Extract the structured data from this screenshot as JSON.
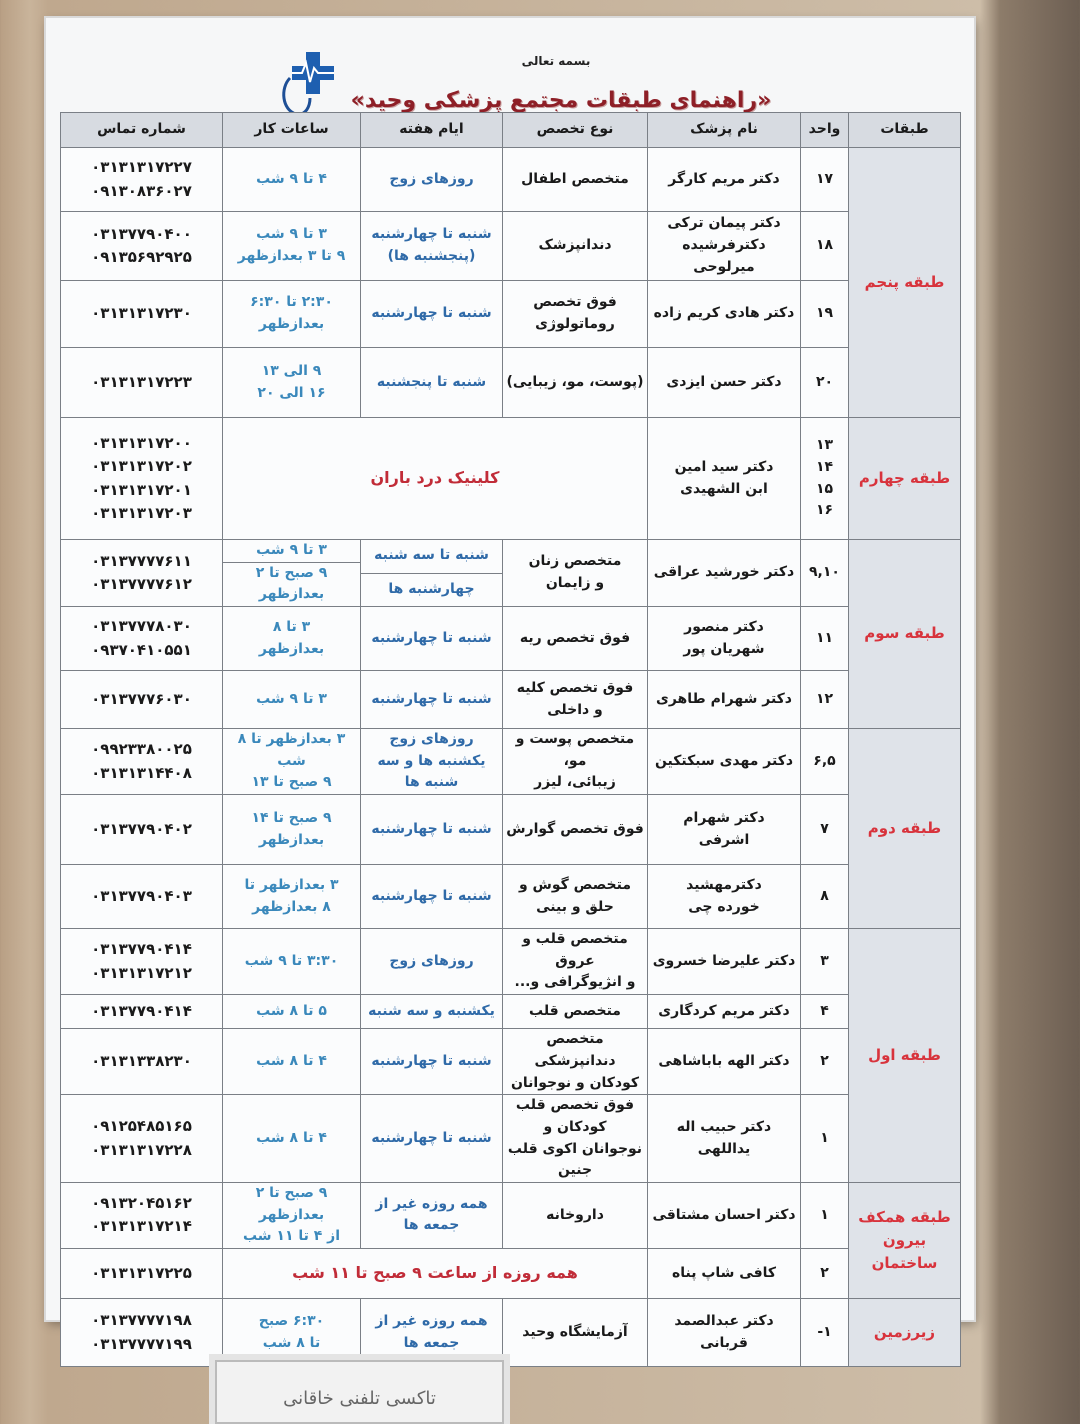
{
  "header": {
    "bismillah": "بسمه تعالی",
    "title": "«راهنمای طبقات مجتمع پزشکی وحید»"
  },
  "columns": [
    "طبقات",
    "واحد",
    "نام پزشک",
    "نوع تخصص",
    "ایام هفته",
    "ساعات کار",
    "شماره تماس"
  ],
  "floors": [
    {
      "label": [
        "طبقه پنجم"
      ],
      "rows": [
        {
          "unit": [
            "۱۷"
          ],
          "name": [
            "دکتر مریم کارگر"
          ],
          "specialty": [
            "متخصص اطفال"
          ],
          "days": [
            "روزهای زوج"
          ],
          "hours": [
            "۴ تا ۹ شب"
          ],
          "phones": [
            "۰۳۱۳۱۳۱۷۲۲۷",
            "۰۹۱۳۰۸۳۶۰۲۷"
          ]
        },
        {
          "unit": [
            "۱۸"
          ],
          "name": [
            "دکتر پیمان ترکی",
            "دکترفرشیده میرلوحی"
          ],
          "specialty": [
            "دندانپزشک"
          ],
          "days": [
            "شنبه تا چهارشنبه",
            "(پنجشنبه ها)"
          ],
          "hours": [
            "۳ تا ۹ شب",
            "۹ تا ۳ بعدازظهر"
          ],
          "phones": [
            "۰۳۱۳۷۷۹۰۴۰۰",
            "۰۹۱۳۵۶۹۲۹۲۵"
          ]
        },
        {
          "unit": [
            "۱۹"
          ],
          "name": [
            "دکتر هادی کریم زاده"
          ],
          "specialty": [
            "فوق تخصص",
            "روماتولوژی"
          ],
          "days": [
            "شنبه تا چهارشنبه"
          ],
          "hours": [
            "۲:۳۰ تا ۶:۳۰",
            "بعدازظهر"
          ],
          "phones": [
            "۰۳۱۳۱۳۱۷۲۳۰"
          ]
        },
        {
          "unit": [
            "۲۰"
          ],
          "name": [
            "دکتر حسن ایزدی"
          ],
          "specialty": [
            "(پوست، مو، زیبایی)"
          ],
          "days": [
            "شنبه تا پنجشنبه"
          ],
          "hours": [
            "۹ الی ۱۳",
            "۱۶ الی ۲۰"
          ],
          "phones": [
            "۰۳۱۳۱۳۱۷۲۲۳"
          ]
        }
      ]
    },
    {
      "label": [
        "طبقه چهارم"
      ],
      "rows": [
        {
          "unit": [
            "۱۳",
            "۱۴",
            "۱۵",
            "۱۶"
          ],
          "name": [
            "دکتر سید امین",
            "ابن الشهیدی"
          ],
          "span": "کلینیک درد باران",
          "phones": [
            "۰۳۱۳۱۳۱۷۲۰۰",
            "۰۳۱۳۱۳۱۷۲۰۲",
            "۰۳۱۳۱۳۱۷۲۰۱",
            "۰۳۱۳۱۳۱۷۲۰۳"
          ]
        }
      ]
    },
    {
      "label": [
        "طبقه سوم"
      ],
      "rows": [
        {
          "unit": [
            "۹,۱۰"
          ],
          "name": [
            "دکتر خورشید عراقی"
          ],
          "specialty": [
            "متخصص زنان",
            "و زایمان"
          ],
          "days": [
            "شنبه تا سه شنبه",
            "چهارشنبه ها"
          ],
          "hours": [
            "۳ تا ۹ شب",
            "۹ صبح تا ۲ بعدازظهر"
          ],
          "split": true,
          "phones": [
            "۰۳۱۳۷۷۷۷۶۱۱",
            "۰۳۱۳۷۷۷۷۶۱۲"
          ]
        },
        {
          "unit": [
            "۱۱"
          ],
          "name": [
            "دکتر منصور",
            "شهریان پور"
          ],
          "specialty": [
            "فوق تخصص ریه"
          ],
          "days": [
            "شنبه تا چهارشنبه"
          ],
          "hours": [
            "۳ تا ۸",
            "بعدازظهر"
          ],
          "phones": [
            "۰۳۱۳۷۷۷۸۰۳۰",
            "۰۹۳۷۰۴۱۰۵۵۱"
          ]
        },
        {
          "unit": [
            "۱۲"
          ],
          "name": [
            "دکتر شهرام طاهری"
          ],
          "specialty": [
            "فوق تخصص کلیه",
            "و داخلی"
          ],
          "days": [
            "شنبه تا چهارشنبه"
          ],
          "hours": [
            "۳ تا ۹ شب"
          ],
          "phones": [
            "۰۳۱۳۷۷۷۶۰۳۰"
          ]
        }
      ]
    },
    {
      "label": [
        "طبقه دوم"
      ],
      "rows": [
        {
          "unit": [
            "۶,۵"
          ],
          "name": [
            "دکتر مهدی سبکتکین"
          ],
          "specialty": [
            "متخصص پوست و مو،",
            "زیبائی، لیزر"
          ],
          "days": [
            "روزهای زوج",
            "یکشنبه ها و سه شنبه ها"
          ],
          "hours": [
            "۳ بعدازظهر تا ۸ شب",
            "۹ صبح تا ۱۳"
          ],
          "phones": [
            "۰۹۹۲۳۳۸۰۰۲۵",
            "۰۳۱۳۱۳۱۴۴۰۸"
          ]
        },
        {
          "unit": [
            "۷"
          ],
          "name": [
            "دکتر شهرام",
            "اشرفی"
          ],
          "specialty": [
            "فوق تخصص گوارش"
          ],
          "days": [
            "شنبه تا چهارشنبه"
          ],
          "hours": [
            "۹ صبح تا ۱۴",
            "بعدازظهر"
          ],
          "phones": [
            "۰۳۱۳۷۷۹۰۴۰۲"
          ]
        },
        {
          "unit": [
            "۸"
          ],
          "name": [
            "دکترمهشید",
            "خورده چی"
          ],
          "specialty": [
            "متخصص گوش و",
            "حلق و بینی"
          ],
          "days": [
            "شنبه تا چهارشنبه"
          ],
          "hours": [
            "۳ بعدازظهر تا",
            "۸ بعدازظهر"
          ],
          "phones": [
            "۰۳۱۳۷۷۹۰۴۰۳"
          ]
        }
      ]
    },
    {
      "label": [
        "طبقه اول"
      ],
      "rows": [
        {
          "unit": [
            "۳"
          ],
          "name": [
            "دکتر علیرضا خسروی"
          ],
          "specialty": [
            "متخصص قلب و عروق",
            "و انژیوگرافی و..."
          ],
          "days": [
            "روزهای زوج"
          ],
          "hours": [
            "۳:۳۰ تا ۹ شب"
          ],
          "phones": [
            "۰۳۱۳۷۷۹۰۴۱۴",
            "۰۳۱۳۱۳۱۷۲۱۲"
          ]
        },
        {
          "unit": [
            "۴"
          ],
          "name": [
            "دکتر مریم کردگاری"
          ],
          "specialty": [
            "متخصص قلب"
          ],
          "days": [
            "یکشنبه و سه شنبه"
          ],
          "hours": [
            "۵ تا ۸ شب"
          ],
          "phones": [
            "۰۳۱۳۷۷۹۰۴۱۴"
          ]
        },
        {
          "unit": [
            "۲"
          ],
          "name": [
            "دکتر الهه باباشاهی"
          ],
          "specialty": [
            "متخصص دندانپزشکی",
            "کودکان و نوجوانان"
          ],
          "days": [
            "شنبه تا چهارشنبه"
          ],
          "hours": [
            "۴ تا ۸ شب"
          ],
          "phones": [
            "۰۳۱۳۱۳۳۸۲۳۰"
          ]
        },
        {
          "unit": [
            "۱"
          ],
          "name": [
            "دکتر حبیب اله یداللهی"
          ],
          "specialty": [
            "فوق تخصص قلب کودکان و",
            "نوجوانان اکوی قلب جنین"
          ],
          "days": [
            "شنبه تا چهارشنبه"
          ],
          "hours": [
            "۴ تا ۸ شب"
          ],
          "phones": [
            "۰۹۱۲۵۴۸۵۱۶۵",
            "۰۳۱۳۱۳۱۷۲۲۸"
          ]
        }
      ]
    },
    {
      "label": [
        "طبقه همکف",
        "بیرون",
        "ساختمان"
      ],
      "rows": [
        {
          "unit": [
            "۱"
          ],
          "name": [
            "دکتر احسان مشتاقی"
          ],
          "specialty": [
            "داروخانه"
          ],
          "days": [
            "همه روزه غیر از",
            "جمعه ها"
          ],
          "hours": [
            "۹ صبح تا ۲ بعدازظهر",
            "از ۴ تا ۱۱ شب"
          ],
          "phones": [
            "۰۹۱۳۲۰۴۵۱۶۲",
            "۰۳۱۳۱۳۱۷۲۱۴"
          ]
        },
        {
          "unit": [
            "۲"
          ],
          "name": [
            "کافی شاپ پناه"
          ],
          "span": "همه روزه از ساعت ۹ صبح تا ۱۱ شب",
          "phones": [
            "۰۳۱۳۱۳۱۷۲۲۵"
          ]
        }
      ]
    },
    {
      "label": [
        "زیرزمین"
      ],
      "rows": [
        {
          "unit": [
            "۱-"
          ],
          "name": [
            "دکتر عبدالصمد",
            "قربانی"
          ],
          "specialty": [
            "آزمایشگاه وحید"
          ],
          "days": [
            "همه روزه غیر از",
            "جمعه ها"
          ],
          "hours": [
            "۶:۳۰ صبح",
            "تا ۸ شب"
          ],
          "phones": [
            "۰۳۱۳۷۷۷۷۱۹۸",
            "۰۳۱۳۷۷۷۷۱۹۹"
          ]
        }
      ]
    }
  ],
  "footer_sign": "تاکسی تلفنی خاقانی",
  "colors": {
    "floor_label": "#d8333c",
    "schedule_text": "#2f6aa8",
    "title": "#8e1f27",
    "header_bg": "#d7dbe1"
  },
  "logo_icon": "medical-cross-stethoscope-icon"
}
